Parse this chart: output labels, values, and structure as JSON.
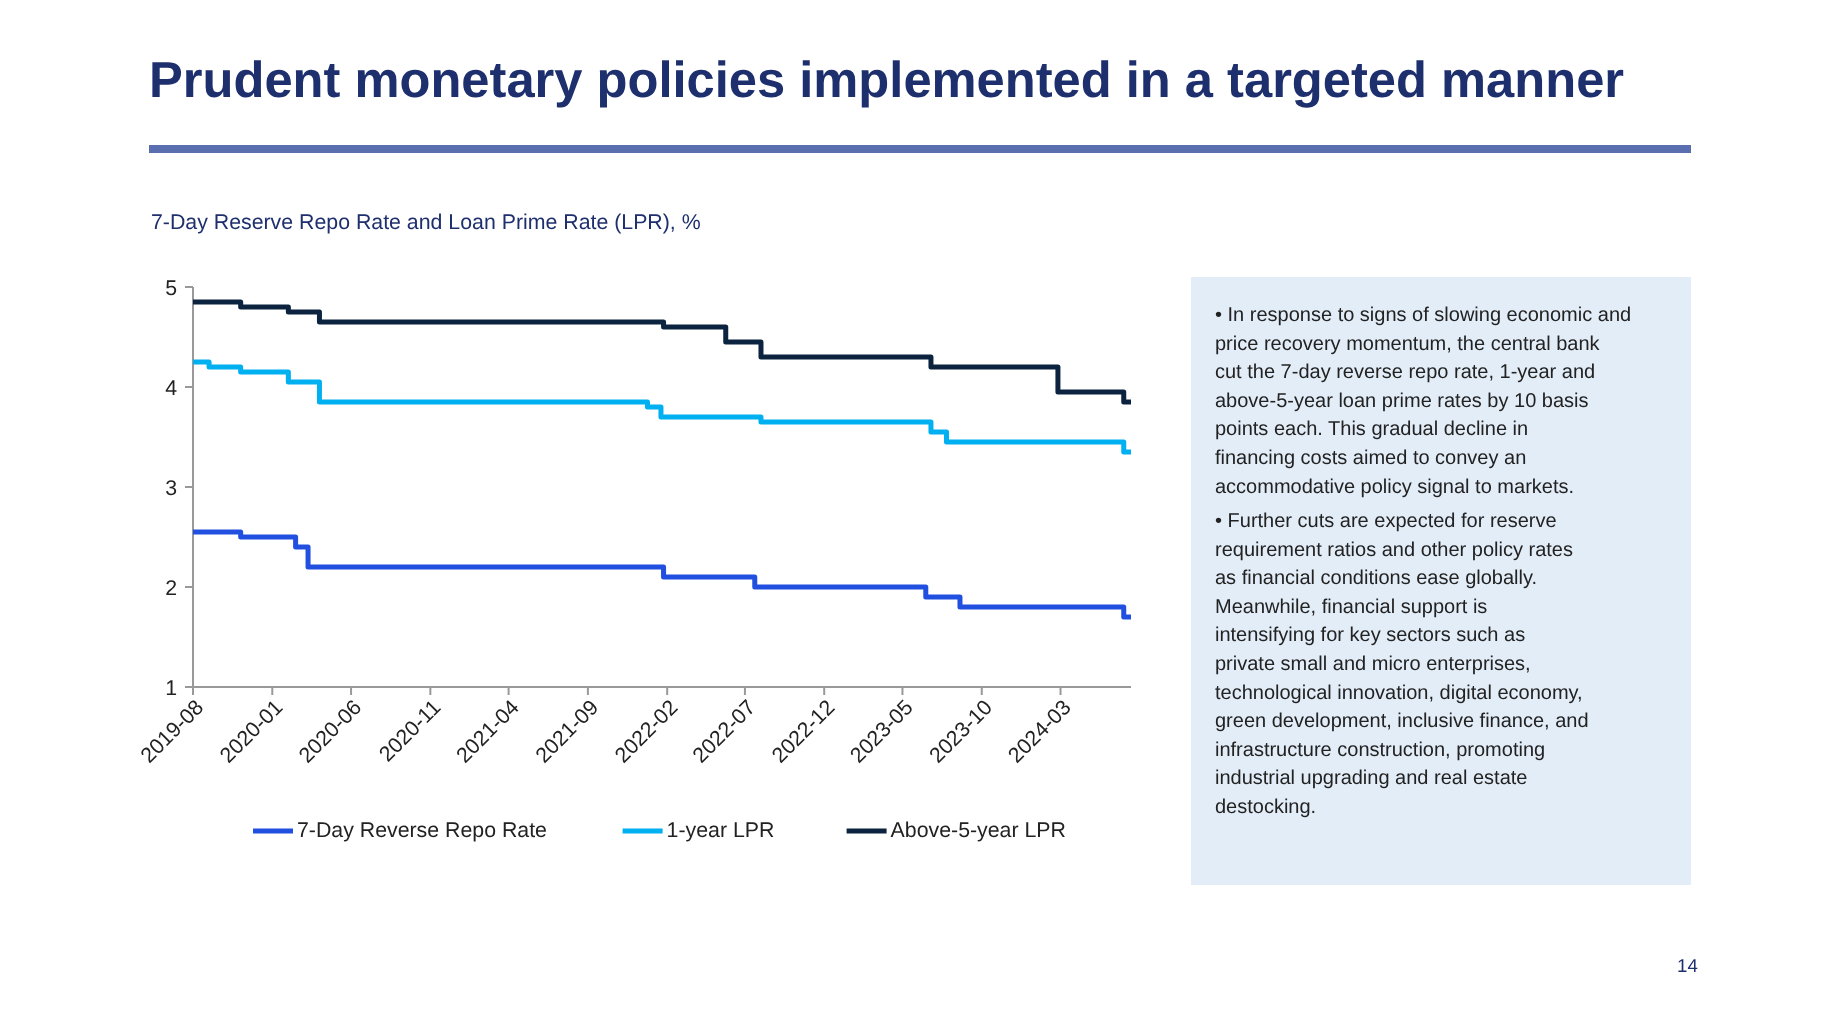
{
  "chart_data": {
    "type": "step",
    "title": "Prudent monetary policies implemented in a targeted manner",
    "subtitle": "7-Day Reserve Repo Rate and Loan Prime Rate (LPR), %",
    "xlim": [
      "2019-08-01",
      "2024-07-15"
    ],
    "xticks": [
      "2019-08",
      "2020-01",
      "2020-06",
      "2020-11",
      "2021-04",
      "2021-09",
      "2022-02",
      "2022-07",
      "2022-12",
      "2023-05",
      "2023-10",
      "2024-03"
    ],
    "ylim": [
      1,
      5
    ],
    "yticks": [
      1,
      2,
      3,
      4,
      5
    ],
    "grid": false,
    "legend": "bottom",
    "series": [
      {
        "name": "7-Day Reverse Repo Rate",
        "color": "#2150e0",
        "x": [
          "2019-08-01",
          "2019-11-01",
          "2020-02-15",
          "2020-03-10",
          "2022-01-25",
          "2022-07-20",
          "2023-06-15",
          "2023-08-20",
          "2024-07-01",
          "2024-07-15"
        ],
        "values": [
          2.55,
          2.5,
          2.4,
          2.2,
          2.1,
          2.0,
          1.9,
          1.8,
          1.7,
          1.7
        ]
      },
      {
        "name": "1-year LPR",
        "color": "#00b0f0",
        "x": [
          "2019-08-01",
          "2019-09-01",
          "2019-11-01",
          "2020-02-01",
          "2020-04-01",
          "2021-12-25",
          "2022-01-20",
          "2022-08-01",
          "2023-06-25",
          "2023-07-25",
          "2024-07-01",
          "2024-07-15"
        ],
        "values": [
          4.25,
          4.2,
          4.15,
          4.05,
          3.85,
          3.8,
          3.7,
          3.65,
          3.55,
          3.45,
          3.35,
          3.35
        ]
      },
      {
        "name": "Above-5-year LPR",
        "color": "#0c233f",
        "x": [
          "2019-08-01",
          "2019-11-01",
          "2020-02-01",
          "2020-04-01",
          "2022-01-25",
          "2022-05-25",
          "2022-08-01",
          "2023-06-25",
          "2024-02-25",
          "2024-07-01",
          "2024-07-15"
        ],
        "values": [
          4.85,
          4.8,
          4.75,
          4.65,
          4.6,
          4.45,
          4.3,
          4.2,
          3.95,
          3.85,
          3.85
        ]
      }
    ],
    "annotations": [
      "• In response to signs of slowing economic and price recovery momentum, the central bank cut the 7-day reverse repo rate, 1-year and above-5-year loan prime rates by 10 basis points each. This gradual decline in financing costs aimed to convey an accommodative policy signal to markets.",
      "• Further cuts are expected for reserve requirement ratios and other policy rates as financial conditions ease globally. Meanwhile, financial support is intensifying for key sectors such as private small and micro enterprises, technological innovation, digital economy, green development, inclusive finance, and infrastructure construction, promoting industrial upgrading and real estate destocking.",
      "14"
    ]
  }
}
